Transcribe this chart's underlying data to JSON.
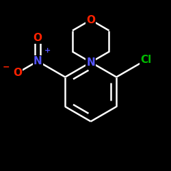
{
  "background_color": "#000000",
  "atom_colors": {
    "C": "#ffffff",
    "N": "#5555ff",
    "O": "#ff2200",
    "Cl": "#00bb00",
    "N+": "#5555ff",
    "O-": "#ff2200"
  },
  "bond_color": "#ffffff",
  "bond_width": 1.8,
  "figsize": [
    2.5,
    2.5
  ],
  "dpi": 100
}
